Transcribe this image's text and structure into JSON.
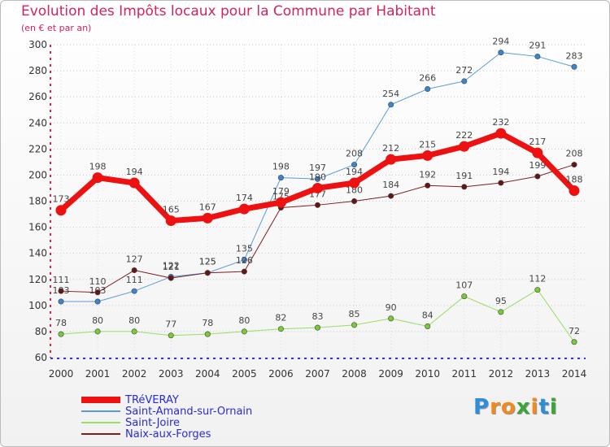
{
  "header": {
    "title": "Evolution des Impôts locaux pour la Commune par Habitant",
    "subtitle": "(en € et par an)"
  },
  "chart_data": {
    "type": "line",
    "title": "Evolution des Impôts locaux pour la Commune par Habitant",
    "subtitle": "(en € et par an)",
    "xlabel": "",
    "ylabel": "",
    "ylim": [
      60,
      300
    ],
    "yticks": [
      60,
      80,
      100,
      120,
      140,
      160,
      180,
      200,
      220,
      240,
      260,
      280,
      300
    ],
    "categories": [
      "2000",
      "2001",
      "2002",
      "2003",
      "2004",
      "2005",
      "2006",
      "2007",
      "2008",
      "2009",
      "2010",
      "2011",
      "2012",
      "2013",
      "2014"
    ],
    "grid": "horizontal dotted",
    "legend_position": "bottom-left",
    "series": [
      {
        "name": "Saint-Amand-sur-Ornain",
        "color": "#5b9bd5",
        "marker": "#3a85d0",
        "width": 1,
        "values": [
          103,
          103,
          111,
          122,
          125,
          135,
          198,
          197,
          208,
          254,
          266,
          272,
          294,
          291,
          283
        ]
      },
      {
        "name": "Saint-Joire",
        "color": "#99dd66",
        "marker": "#77cc33",
        "width": 1,
        "values": [
          78,
          80,
          80,
          77,
          78,
          80,
          82,
          83,
          85,
          90,
          84,
          107,
          95,
          112,
          72
        ]
      },
      {
        "name": "Naix-aux-Forges",
        "color": "#7a1f1f",
        "marker": "#661515",
        "width": 1,
        "values": [
          111,
          110,
          127,
          121,
          125,
          126,
          175,
          177,
          180,
          184,
          192,
          191,
          194,
          199,
          208
        ]
      },
      {
        "name": "TRéVERAY",
        "color": "#ee1111",
        "marker": "#ee1111",
        "width": 7,
        "values": [
          173,
          198,
          194,
          165,
          167,
          174,
          179,
          190,
          194,
          212,
          215,
          222,
          232,
          217,
          188
        ]
      }
    ],
    "legend_order": [
      "TRéVERAY",
      "Saint-Amand-sur-Ornain",
      "Saint-Joire",
      "Naix-aux-Forges"
    ]
  },
  "logo": {
    "letters": [
      "P",
      "r",
      "o",
      "x",
      "i",
      "t",
      "i"
    ],
    "colors": [
      "#2e8fd8",
      "#f08a1c",
      "#f08a1c",
      "#3aa43a",
      "#f08a1c",
      "#2e8fd8",
      "#3aa43a"
    ]
  }
}
